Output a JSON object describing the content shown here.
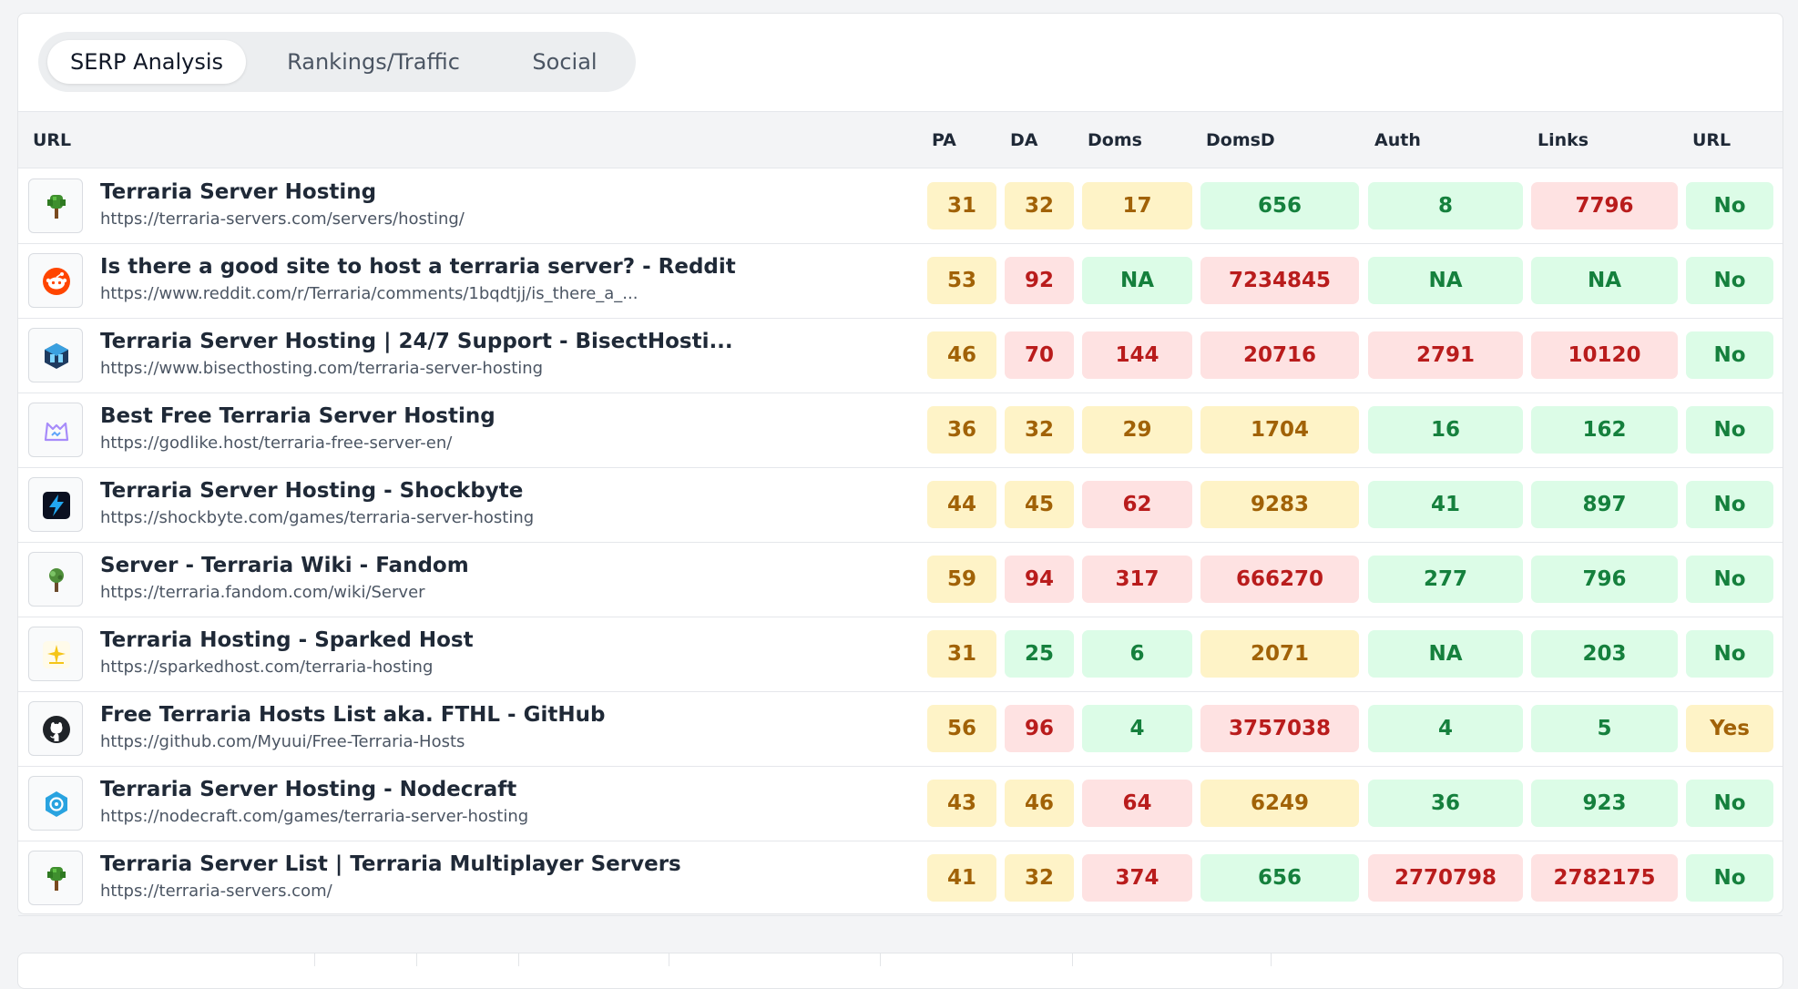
{
  "tabs": [
    {
      "label": "SERP Analysis",
      "active": true
    },
    {
      "label": "Rankings/Traffic",
      "active": false
    },
    {
      "label": "Social",
      "active": false
    }
  ],
  "columns": {
    "url": "URL",
    "pa": "PA",
    "da": "DA",
    "doms": "Doms",
    "domsd": "DomsD",
    "auth": "Auth",
    "links": "Links",
    "url_flag": "URL"
  },
  "status_colors": {
    "good": "#dcfce7",
    "warn": "#fef3c7",
    "bad": "#fee2e2"
  },
  "rows": [
    {
      "icon": "pixel-tree-icon",
      "title": "Terraria Server Hosting",
      "url": "https://terraria-servers.com/servers/hosting/",
      "pa": "31",
      "da": "32",
      "doms": "17",
      "domsd": "656",
      "auth": "8",
      "links": "7796",
      "url_flag": "No",
      "status": [
        "y",
        "y",
        "y",
        "g",
        "g",
        "r",
        "g"
      ]
    },
    {
      "icon": "reddit-icon",
      "title": "Is there a good site to host a terraria server? - Reddit",
      "url": "https://www.reddit.com/r/Terraria/comments/1bqdtjj/is_there_a_...",
      "pa": "53",
      "da": "92",
      "doms": "NA",
      "domsd": "7234845",
      "auth": "NA",
      "links": "NA",
      "url_flag": "No",
      "status": [
        "y",
        "r",
        "g",
        "r",
        "g",
        "g",
        "g"
      ]
    },
    {
      "icon": "bisect-cube-icon",
      "title": "Terraria Server Hosting | 24/7 Support - BisectHosti...",
      "url": "https://www.bisecthosting.com/terraria-server-hosting",
      "pa": "46",
      "da": "70",
      "doms": "144",
      "domsd": "20716",
      "auth": "2791",
      "links": "10120",
      "url_flag": "No",
      "status": [
        "y",
        "r",
        "r",
        "r",
        "r",
        "r",
        "g"
      ]
    },
    {
      "icon": "godlike-cat-icon",
      "title": "Best Free Terraria Server Hosting",
      "url": "https://godlike.host/terraria-free-server-en/",
      "pa": "36",
      "da": "32",
      "doms": "29",
      "domsd": "1704",
      "auth": "16",
      "links": "162",
      "url_flag": "No",
      "status": [
        "y",
        "y",
        "y",
        "y",
        "g",
        "g",
        "g"
      ]
    },
    {
      "icon": "lightning-bolt-icon",
      "title": "Terraria Server Hosting - Shockbyte",
      "url": "https://shockbyte.com/games/terraria-server-hosting",
      "pa": "44",
      "da": "45",
      "doms": "62",
      "domsd": "9283",
      "auth": "41",
      "links": "897",
      "url_flag": "No",
      "status": [
        "y",
        "y",
        "r",
        "y",
        "g",
        "g",
        "g"
      ]
    },
    {
      "icon": "fandom-tree-icon",
      "title": "Server - Terraria Wiki - Fandom",
      "url": "https://terraria.fandom.com/wiki/Server",
      "pa": "59",
      "da": "94",
      "doms": "317",
      "domsd": "666270",
      "auth": "277",
      "links": "796",
      "url_flag": "No",
      "status": [
        "y",
        "r",
        "r",
        "r",
        "g",
        "g",
        "g"
      ]
    },
    {
      "icon": "sparkle-icon",
      "title": "Terraria Hosting - Sparked Host",
      "url": "https://sparkedhost.com/terraria-hosting",
      "pa": "31",
      "da": "25",
      "doms": "6",
      "domsd": "2071",
      "auth": "NA",
      "links": "203",
      "url_flag": "No",
      "status": [
        "y",
        "g",
        "g",
        "y",
        "g",
        "g",
        "g"
      ]
    },
    {
      "icon": "github-icon",
      "title": "Free Terraria Hosts List aka. FTHL - GitHub",
      "url": "https://github.com/Myuui/Free-Terraria-Hosts",
      "pa": "56",
      "da": "96",
      "doms": "4",
      "domsd": "3757038",
      "auth": "4",
      "links": "5",
      "url_flag": "Yes",
      "status": [
        "y",
        "r",
        "g",
        "r",
        "g",
        "g",
        "y"
      ]
    },
    {
      "icon": "nodecraft-icon",
      "title": "Terraria Server Hosting - Nodecraft",
      "url": "https://nodecraft.com/games/terraria-server-hosting",
      "pa": "43",
      "da": "46",
      "doms": "64",
      "domsd": "6249",
      "auth": "36",
      "links": "923",
      "url_flag": "No",
      "status": [
        "y",
        "y",
        "r",
        "y",
        "g",
        "g",
        "g"
      ]
    },
    {
      "icon": "pixel-tree-icon",
      "title": "Terraria Server List | Terraria Multiplayer Servers",
      "url": "https://terraria-servers.com/",
      "pa": "41",
      "da": "32",
      "doms": "374",
      "domsd": "656",
      "auth": "2770798",
      "links": "2782175",
      "url_flag": "No",
      "status": [
        "y",
        "y",
        "r",
        "g",
        "r",
        "r",
        "g"
      ]
    }
  ]
}
